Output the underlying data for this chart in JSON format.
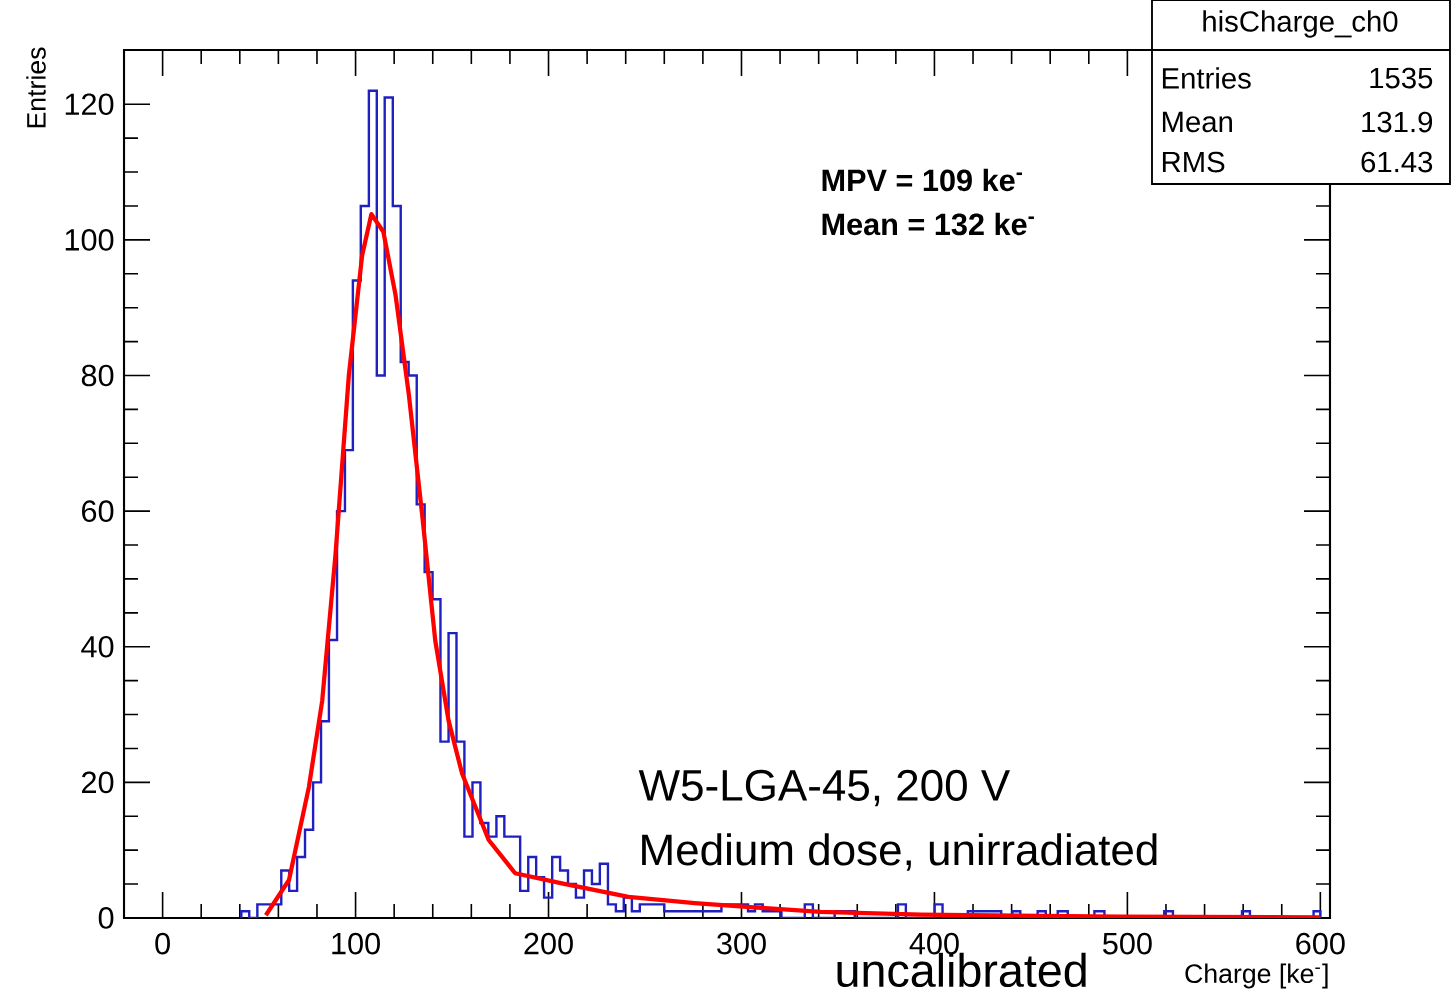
{
  "chart_data": {
    "type": "histogram",
    "xlabel": "Charge [ke$^{-}$]",
    "ylabel": "Entries",
    "xlim": [
      -20,
      605
    ],
    "ylim": [
      0,
      128
    ],
    "xticks": [
      0,
      100,
      200,
      300,
      400,
      500,
      600
    ],
    "yticks": [
      0,
      20,
      40,
      60,
      80,
      100,
      120
    ],
    "series": [
      {
        "color": "#2020c0",
        "bins": [
          40.8,
          44.9,
          49.1,
          53.2,
          57.3,
          61.5,
          65.6,
          69.7,
          73.8,
          78.0,
          82.1,
          86.2,
          90.4,
          94.5,
          98.6,
          102.7,
          106.9,
          111.0,
          115.1,
          119.3,
          123.4,
          127.5,
          131.7,
          135.8,
          139.9,
          144.0,
          148.2,
          152.3,
          156.4,
          160.6,
          164.7,
          168.8,
          173.0,
          177.1,
          181.2,
          185.3,
          189.5,
          193.6,
          197.7,
          201.9,
          206.0,
          210.1,
          214.2,
          218.4,
          222.5,
          226.6,
          230.8,
          234.9,
          239.0,
          243.2,
          247.3,
          251.4,
          260,
          289.6,
          303.4,
          307,
          311,
          320.7,
          332.8,
          337,
          348.3,
          358.7,
          381.1,
          385.2,
          400.1,
          404.2,
          417.3,
          434.6,
          440.4,
          444.5,
          453.5,
          457.7,
          463.9,
          469.1,
          482.9,
          488.1,
          519.1,
          523.6,
          559.4,
          563.5,
          596.5,
          600
        ],
        "values": [
          1,
          0,
          2,
          2,
          2,
          7,
          4,
          9,
          13,
          20,
          29,
          41,
          60,
          69,
          94,
          105,
          122,
          80,
          121,
          105,
          82,
          80,
          61,
          51,
          47,
          26,
          42,
          26,
          12,
          20,
          14,
          12,
          15,
          12,
          12,
          4,
          9,
          6,
          3,
          9,
          7,
          5,
          3,
          7,
          5,
          8,
          2,
          1,
          3,
          1,
          2,
          2,
          1,
          2,
          1,
          2,
          1,
          0,
          2,
          0,
          1,
          0,
          2,
          0,
          2,
          0,
          1,
          0,
          1,
          0,
          1,
          0,
          1,
          0,
          1,
          0,
          1,
          0,
          1,
          0,
          1
        ]
      },
      {
        "type": "line",
        "color": "#ff0000",
        "x": [
          53.5,
          65.5,
          75.8,
          82.7,
          89.6,
          96.5,
          103.4,
          108.2,
          114.4,
          120.7,
          127.6,
          134.5,
          141.3,
          148.2,
          155.2,
          169,
          182.7,
          206.9,
          241.4,
          275.8,
          310,
          341,
          393,
          496,
          600
        ],
        "values": [
          0.4,
          5.6,
          19.3,
          32,
          53.6,
          80,
          97.7,
          103.8,
          101.2,
          91.9,
          77.2,
          59.5,
          40.9,
          29.1,
          21.3,
          11.5,
          6.6,
          5.1,
          3.1,
          2.2,
          1.5,
          0.9,
          0.5,
          0.2,
          0.1
        ]
      }
    ],
    "annotations": [
      "MPV  = 109 ke$^{-}$",
      "Mean = 132 ke$^{-}$",
      "hisCharge_ch0",
      "Entries",
      "1535",
      "Mean",
      "131.9",
      "RMS",
      "61.43",
      "W5-LGA-45, 200 V",
      "Medium dose, unirradiated",
      "uncalibrated"
    ]
  }
}
